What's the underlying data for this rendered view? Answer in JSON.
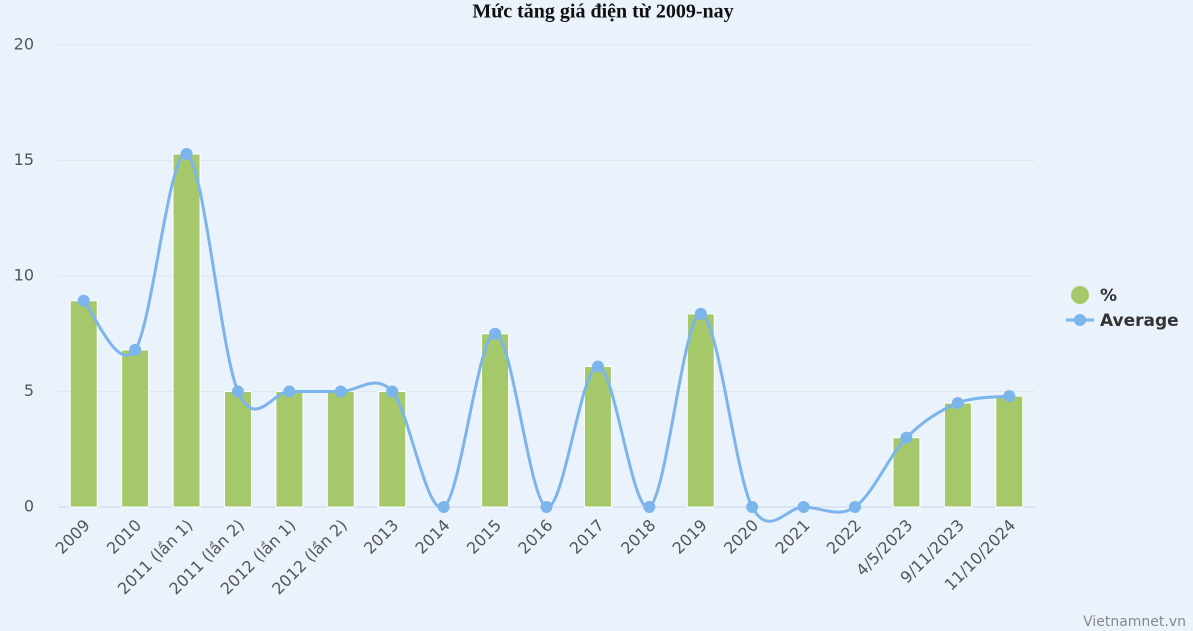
{
  "chart_data": {
    "type": "bar-line",
    "title": "Mức tăng giá điện từ 2009-nay",
    "source": "Vietnamnet.vn",
    "categories": [
      "2009",
      "2010",
      "2011 (lần 1)",
      "2011 (lần 2)",
      "2012 (lần 1)",
      "2012 (lần 2)",
      "2013",
      "2014",
      "2015",
      "2016",
      "2017",
      "2018",
      "2019",
      "2020",
      "2021",
      "2022",
      "4/5/2023",
      "9/11/2023",
      "11/10/2024"
    ],
    "series": [
      {
        "name": "%",
        "type": "bar",
        "color": "#a5c96a",
        "values": [
          8.93,
          6.8,
          15.28,
          5,
          5,
          5,
          5,
          0,
          7.5,
          0,
          6.08,
          0,
          8.36,
          0,
          0,
          0,
          3,
          4.5,
          4.8
        ]
      },
      {
        "name": "Average",
        "type": "spline",
        "color": "#7cb5ec",
        "values": [
          8.93,
          6.8,
          15.28,
          5,
          5,
          5,
          5,
          0,
          7.5,
          0,
          6.08,
          0,
          8.36,
          0,
          0,
          0,
          3,
          4.5,
          4.8
        ]
      }
    ],
    "ylim": [
      0,
      20
    ],
    "yticks": [
      0,
      5,
      10,
      15,
      20
    ],
    "grid": true,
    "legend": "right"
  }
}
